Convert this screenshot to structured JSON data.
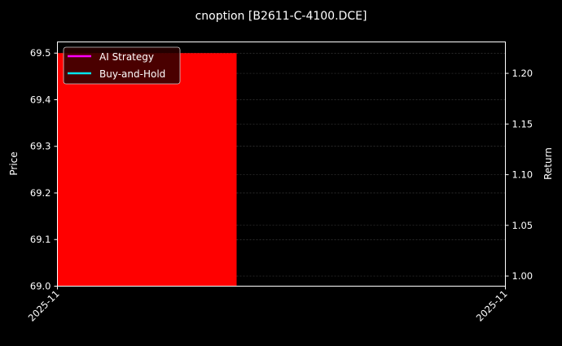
{
  "chart_data": {
    "type": "bar",
    "title": "cnoption [B2611-C-4100.DCE]",
    "ylabel": "Price",
    "y2label": "Return",
    "ylim": [
      69.0,
      69.524
    ],
    "y2lim": [
      0.99,
      1.231
    ],
    "yticks": [
      "69.0",
      "69.1",
      "69.2",
      "69.3",
      "69.4",
      "69.5"
    ],
    "y2ticks": [
      "1.00",
      "1.05",
      "1.10",
      "1.15",
      "1.20"
    ],
    "xticks": [
      "2025-11",
      "2025-11"
    ],
    "bars": [
      {
        "x_start_fraction": 0.0,
        "x_end_fraction": 0.4,
        "value": 69.5,
        "color": "#ff0000"
      }
    ],
    "legend": {
      "position": "top-left",
      "entries": [
        {
          "label": "AI Strategy",
          "color": "#ff00ff"
        },
        {
          "label": "Buy-and-Hold",
          "color": "#00e5ee"
        }
      ]
    },
    "grid": true,
    "background": "#000000"
  }
}
